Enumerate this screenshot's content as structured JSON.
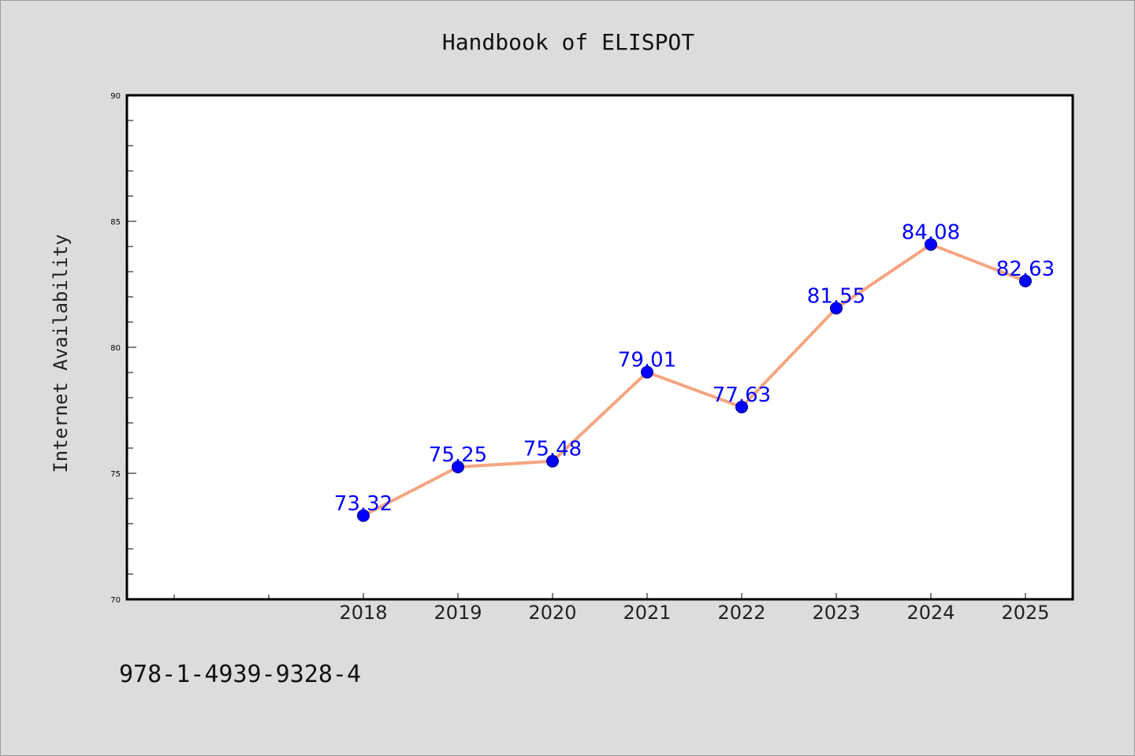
{
  "colors": {
    "background": "#dcdcdc",
    "plot_background": "#ffffff",
    "line": "#f4a582",
    "marker": "#0000ff",
    "data_label": "#0000ff"
  },
  "footer": {
    "isbn": "978-1-4939-9328-4"
  },
  "chart_data": {
    "type": "line",
    "title": "Handbook of ELISPOT",
    "xlabel": "",
    "ylabel": "Internet Availability",
    "x": [
      "2018",
      "2019",
      "2020",
      "2021",
      "2022",
      "2023",
      "2024",
      "2025"
    ],
    "series": [
      {
        "values": [
          73.32,
          75.25,
          75.48,
          79.01,
          77.63,
          81.55,
          84.08,
          82.63
        ],
        "labels": [
          "73.32",
          "75.25",
          "75.48",
          "79.01",
          "77.63",
          "81.55",
          "84.08",
          "82.63"
        ]
      }
    ],
    "ylim": [
      70,
      90
    ],
    "yticks": [
      "70",
      "75",
      "80",
      "85",
      "90"
    ],
    "grid": false,
    "legend": "none"
  }
}
